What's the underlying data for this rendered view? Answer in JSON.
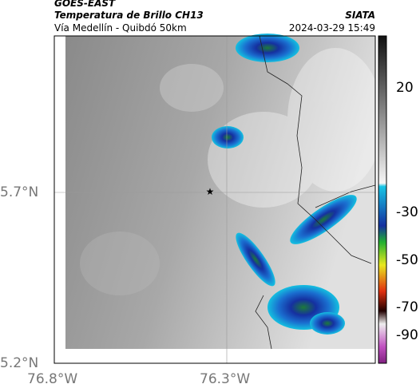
{
  "header": {
    "title": "GOES-EAST",
    "subtitle": "Temperatura de Brillo CH13",
    "route": "Vía Medellín - Quibdó 50km",
    "source": "SIATA",
    "datetime": "2024-03-29 15:49"
  },
  "map": {
    "lat_labels": [
      "5.7°N",
      "5.2°N"
    ],
    "lon_labels": [
      "76.8°W",
      "76.3°W"
    ]
  },
  "colorbar": {
    "ticks": [
      20,
      -30,
      -50,
      -70,
      -90
    ]
  }
}
